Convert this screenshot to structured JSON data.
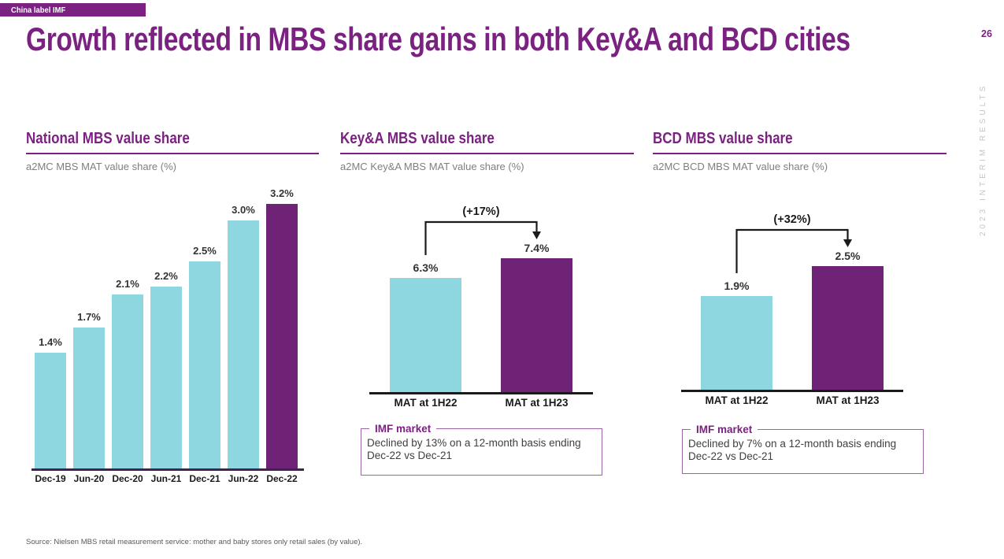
{
  "badge": {
    "label": "China label IMF"
  },
  "title": "Growth reflected in MBS share gains in both Key&A and BCD cities",
  "page": {
    "number": "26",
    "sidebar_text": "2023 INTERIM RESULTS"
  },
  "colors": {
    "brand_purple": "#7B2182",
    "bar_teal": "#8FD7E0",
    "bar_purple": "#6E2376",
    "chart1_axis": "#42215A",
    "axis_black": "#1A1A1A",
    "subtitle_gray": "#7F7F7F",
    "sidebar_gray": "#C5C5C5",
    "callout_border": "#9C64A6"
  },
  "charts": [
    {
      "section_title": "National MBS value share",
      "subtitle": "a2MC MBS MAT value share (%)",
      "chart_data": {
        "type": "bar",
        "categories": [
          "Dec-19",
          "Jun-20",
          "Dec-20",
          "Jun-21",
          "Dec-21",
          "Jun-22",
          "Dec-22"
        ],
        "values": [
          1.4,
          1.7,
          2.1,
          2.2,
          2.5,
          3.0,
          3.2
        ],
        "value_labels": [
          "1.4%",
          "1.7%",
          "2.1%",
          "2.2%",
          "2.5%",
          "3.0%",
          "3.2%"
        ],
        "highlight_index": 6,
        "unit": "%",
        "ylabel": "a2MC MBS MAT value share (%)",
        "ylim": [
          0,
          3.5
        ],
        "grid": false,
        "legend": "none"
      }
    },
    {
      "section_title": "Key&A MBS value share",
      "subtitle": "a2MC Key&A MBS MAT value share (%)",
      "chart_data": {
        "type": "bar",
        "categories": [
          "MAT at 1H22",
          "MAT at 1H23"
        ],
        "values": [
          6.3,
          7.4
        ],
        "value_labels": [
          "6.3%",
          "7.4%"
        ],
        "highlight_index": 1,
        "growth_annotation": "(+17%)",
        "unit": "%",
        "ylabel": "a2MC Key&A MBS MAT value share (%)",
        "ylim": [
          0,
          8
        ],
        "grid": false,
        "legend": "none"
      },
      "callout": {
        "title": "IMF market",
        "text": "Declined by 13% on a 12-month basis ending Dec-22 vs Dec-21"
      }
    },
    {
      "section_title": "BCD MBS value share",
      "subtitle": "a2MC BCD MBS MAT value share (%)",
      "chart_data": {
        "type": "bar",
        "categories": [
          "MAT at 1H22",
          "MAT at 1H23"
        ],
        "values": [
          1.9,
          2.5
        ],
        "value_labels": [
          "1.9%",
          "2.5%"
        ],
        "highlight_index": 1,
        "growth_annotation": "(+32%)",
        "unit": "%",
        "ylabel": "a2MC BCD MBS MAT value share (%)",
        "ylim": [
          0,
          2.8
        ],
        "grid": false,
        "legend": "none"
      },
      "callout": {
        "title": "IMF market",
        "text": "Declined by 7% on a 12-month basis ending Dec-22 vs Dec-21"
      }
    }
  ],
  "footer": {
    "source": "Source: Nielsen MBS retail measurement service: mother and baby stores only retail sales (by value)."
  }
}
